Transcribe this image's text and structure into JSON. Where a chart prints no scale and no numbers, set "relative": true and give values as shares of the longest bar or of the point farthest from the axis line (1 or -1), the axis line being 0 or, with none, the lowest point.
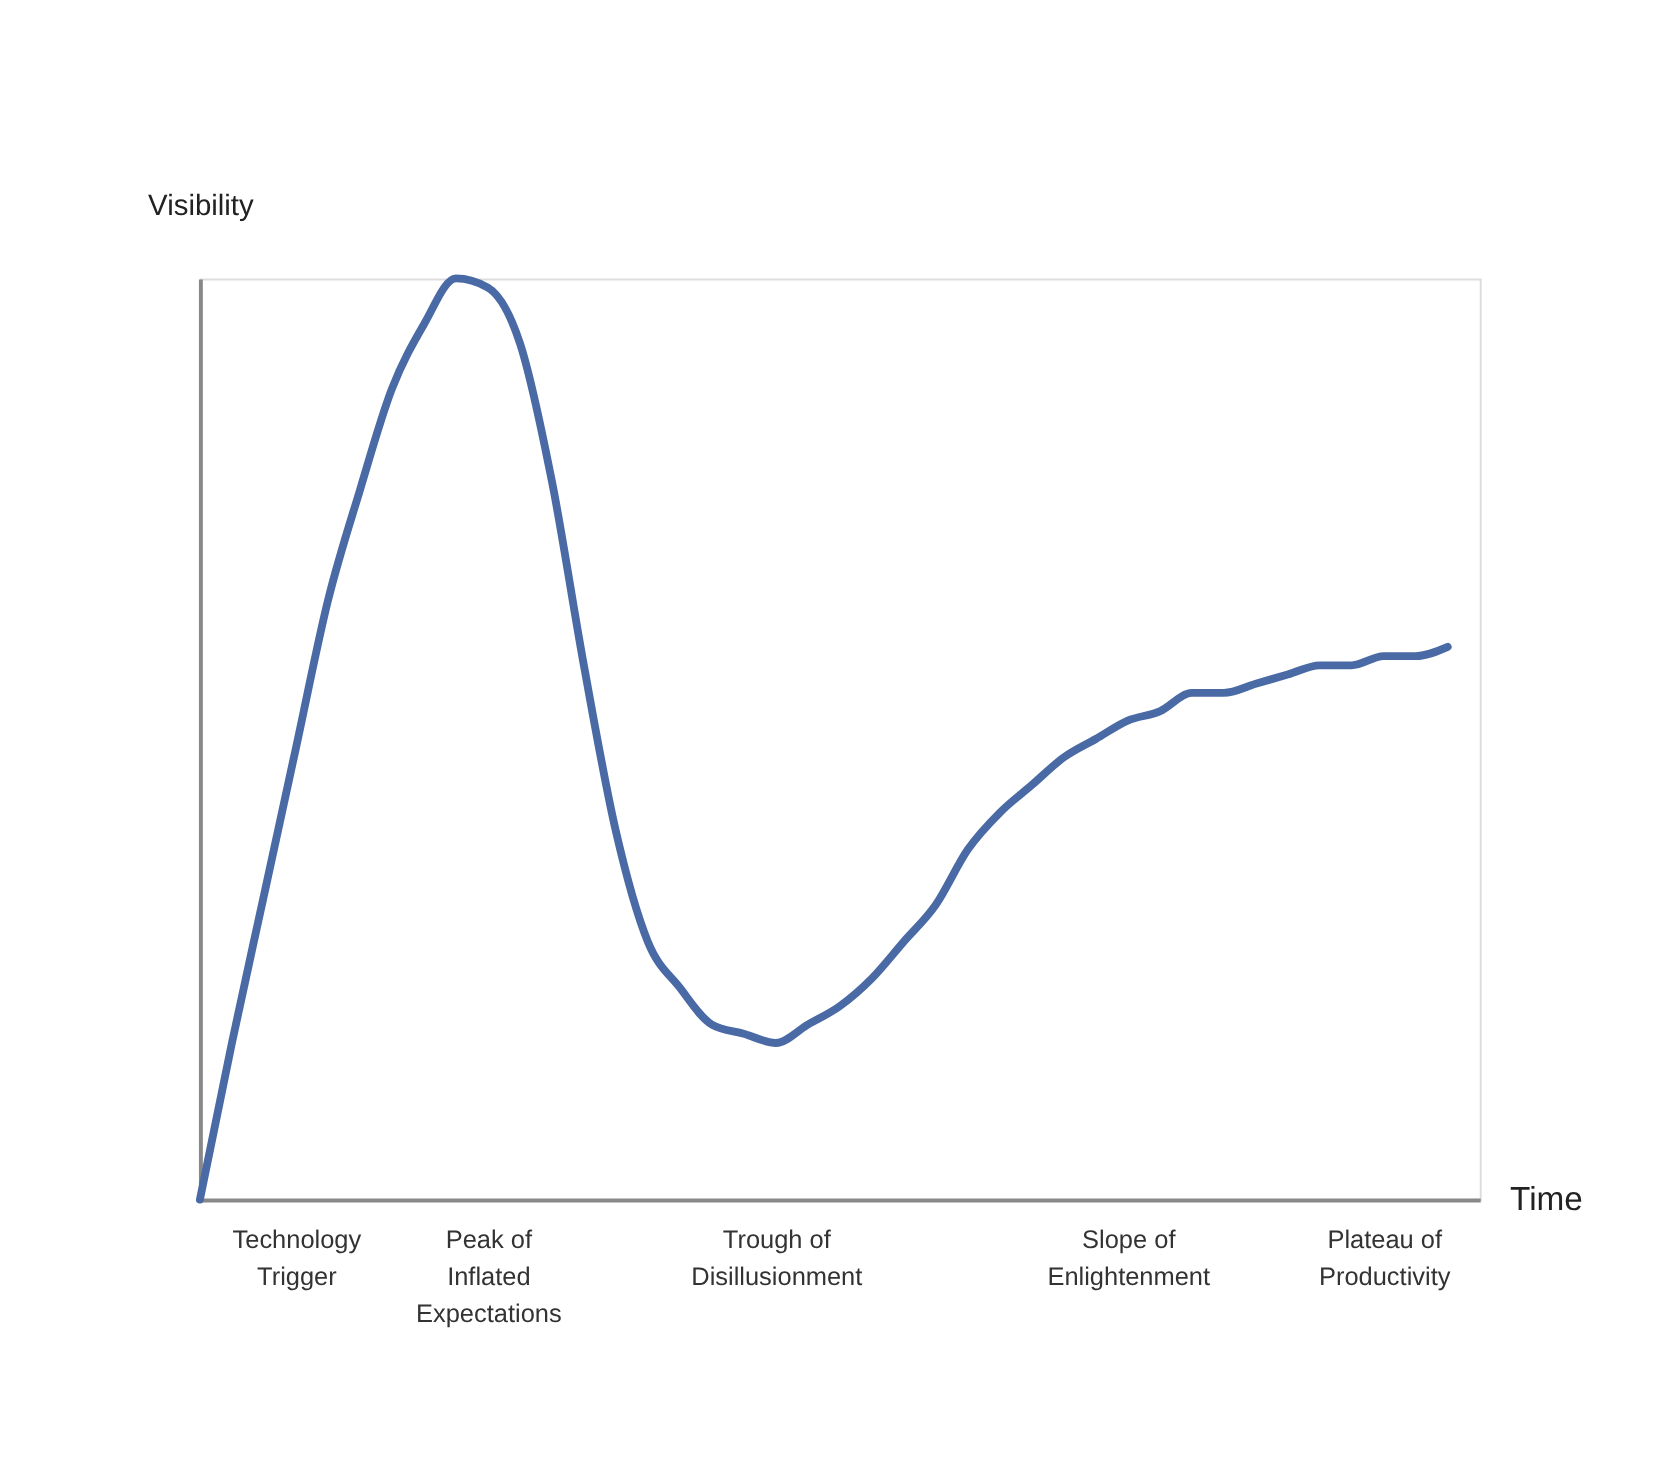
{
  "chart_data": {
    "type": "line",
    "relative": true,
    "xlabel": "Time",
    "ylabel": "Visibility",
    "categories": [
      null,
      null,
      null,
      "Technology\nTrigger",
      null,
      null,
      null,
      null,
      null,
      "Peak of\nInflated\nExpectations",
      null,
      null,
      null,
      null,
      null,
      null,
      null,
      null,
      "Trough of\nDisillusionment",
      null,
      null,
      null,
      null,
      null,
      null,
      null,
      null,
      null,
      null,
      "Slope of\nEnlightenment",
      null,
      null,
      null,
      null,
      null,
      null,
      null,
      "Plateau of\nProductivity",
      null,
      null
    ],
    "series": [
      {
        "color": "#4a6aa5",
        "values": [
          0,
          0.17,
          0.33,
          0.49,
          0.65,
          0.77,
          0.88,
          0.95,
          1.0,
          0.99,
          0.93,
          0.78,
          0.58,
          0.4,
          0.28,
          0.23,
          0.19,
          0.18,
          0.17,
          0.19,
          0.21,
          0.24,
          0.28,
          0.32,
          0.38,
          0.42,
          0.45,
          0.48,
          0.5,
          0.52,
          0.53,
          0.55,
          0.55,
          0.56,
          0.57,
          0.58,
          0.58,
          0.59,
          0.59,
          0.6
        ]
      }
    ],
    "grid": false,
    "marker": "none",
    "line_style": "solid"
  }
}
